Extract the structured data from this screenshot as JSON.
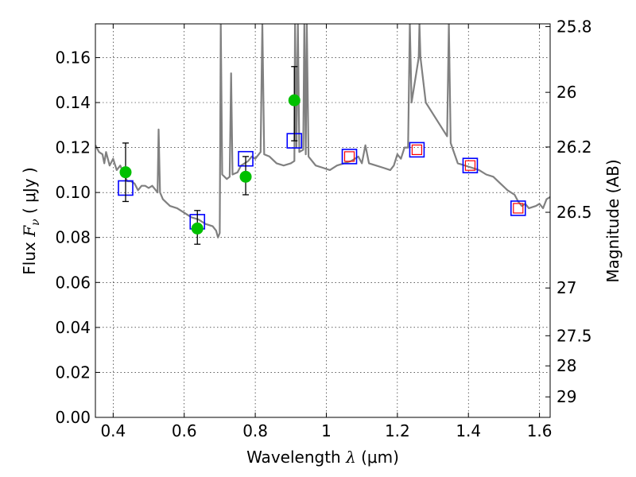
{
  "chart_data": {
    "type": "scatter",
    "xlabel": {
      "prefix": "Wavelength  ",
      "symbol": "λ",
      "unit": " (μm)"
    },
    "ylabel": {
      "prefix": "Flux  ",
      "symbol": "F",
      "subscript": "ν",
      "unit": "  ( μJy )"
    },
    "y2label": "Magnitude (AB)",
    "xlim": [
      0.35,
      1.63
    ],
    "ylim": [
      0.0,
      0.175
    ],
    "x_ticks": [
      0.4,
      0.6,
      0.8,
      1.0,
      1.2,
      1.4,
      1.6
    ],
    "x_tick_labels": [
      "0.4",
      "0.6",
      "0.8",
      "1",
      "1.2",
      "1.4",
      "1.6"
    ],
    "y_ticks": [
      0.0,
      0.02,
      0.04,
      0.06,
      0.08,
      0.1,
      0.12,
      0.14,
      0.16
    ],
    "y_tick_labels": [
      "0.00",
      "0.02",
      "0.04",
      "0.06",
      "0.08",
      "0.10",
      "0.12",
      "0.14",
      "0.16"
    ],
    "y2_ticks": [
      {
        "label": "25.8",
        "mag": 25.8
      },
      {
        "label": "26",
        "mag": 26.0
      },
      {
        "label": "26.2",
        "mag": 26.2
      },
      {
        "label": "26.5",
        "mag": 26.5
      },
      {
        "label": "27",
        "mag": 27.0
      },
      {
        "label": "27.5",
        "mag": 27.5
      },
      {
        "label": "28",
        "mag": 28.0
      },
      {
        "label": "29",
        "mag": 29.0
      }
    ],
    "grid": true,
    "colors": {
      "model": "#808080",
      "observed": "#00c000",
      "model_box": "#0000ff",
      "model_box_inner": "#ff0000",
      "errorbar": "#000000"
    },
    "series": [
      {
        "kind": "line",
        "points": [
          [
            0.35,
            0.121
          ],
          [
            0.36,
            0.118
          ],
          [
            0.37,
            0.117
          ],
          [
            0.375,
            0.113
          ],
          [
            0.38,
            0.118
          ],
          [
            0.39,
            0.112
          ],
          [
            0.4,
            0.115
          ],
          [
            0.41,
            0.11
          ],
          [
            0.42,
            0.112
          ],
          [
            0.43,
            0.108
          ],
          [
            0.44,
            0.105
          ],
          [
            0.45,
            0.105
          ],
          [
            0.46,
            0.104
          ],
          [
            0.47,
            0.101
          ],
          [
            0.48,
            0.103
          ],
          [
            0.49,
            0.103
          ],
          [
            0.5,
            0.102
          ],
          [
            0.51,
            0.103
          ],
          [
            0.52,
            0.101
          ],
          [
            0.525,
            0.1
          ],
          [
            0.528,
            0.128
          ],
          [
            0.532,
            0.1
          ],
          [
            0.54,
            0.097
          ],
          [
            0.56,
            0.094
          ],
          [
            0.58,
            0.093
          ],
          [
            0.6,
            0.091
          ],
          [
            0.62,
            0.089
          ],
          [
            0.64,
            0.088
          ],
          [
            0.66,
            0.086
          ],
          [
            0.68,
            0.085
          ],
          [
            0.69,
            0.083
          ],
          [
            0.695,
            0.08
          ],
          [
            0.7,
            0.082
          ],
          [
            0.703,
            0.175
          ],
          [
            0.707,
            0.108
          ],
          [
            0.72,
            0.106
          ],
          [
            0.728,
            0.107
          ],
          [
            0.732,
            0.153
          ],
          [
            0.736,
            0.108
          ],
          [
            0.75,
            0.109
          ],
          [
            0.76,
            0.112
          ],
          [
            0.77,
            0.113
          ],
          [
            0.78,
            0.114
          ],
          [
            0.79,
            0.116
          ],
          [
            0.8,
            0.115
          ],
          [
            0.815,
            0.118
          ],
          [
            0.82,
            0.175
          ],
          [
            0.825,
            0.117
          ],
          [
            0.84,
            0.116
          ],
          [
            0.86,
            0.113
          ],
          [
            0.88,
            0.112
          ],
          [
            0.9,
            0.113
          ],
          [
            0.91,
            0.114
          ],
          [
            0.912,
            0.175
          ],
          [
            0.916,
            0.12
          ],
          [
            0.92,
            0.175
          ],
          [
            0.924,
            0.118
          ],
          [
            0.935,
            0.119
          ],
          [
            0.938,
            0.175
          ],
          [
            0.942,
            0.117
          ],
          [
            0.945,
            0.175
          ],
          [
            0.95,
            0.116
          ],
          [
            0.97,
            0.112
          ],
          [
            0.99,
            0.111
          ],
          [
            1.01,
            0.11
          ],
          [
            1.03,
            0.112
          ],
          [
            1.05,
            0.113
          ],
          [
            1.07,
            0.114
          ],
          [
            1.09,
            0.116
          ],
          [
            1.1,
            0.113
          ],
          [
            1.11,
            0.121
          ],
          [
            1.12,
            0.113
          ],
          [
            1.14,
            0.112
          ],
          [
            1.16,
            0.111
          ],
          [
            1.18,
            0.11
          ],
          [
            1.19,
            0.112
          ],
          [
            1.2,
            0.117
          ],
          [
            1.21,
            0.115
          ],
          [
            1.22,
            0.12
          ],
          [
            1.23,
            0.12
          ],
          [
            1.235,
            0.175
          ],
          [
            1.24,
            0.14
          ],
          [
            1.26,
            0.16
          ],
          [
            1.262,
            0.175
          ],
          [
            1.265,
            0.16
          ],
          [
            1.28,
            0.14
          ],
          [
            1.3,
            0.135
          ],
          [
            1.32,
            0.13
          ],
          [
            1.34,
            0.125
          ],
          [
            1.345,
            0.175
          ],
          [
            1.35,
            0.122
          ],
          [
            1.37,
            0.113
          ],
          [
            1.39,
            0.112
          ],
          [
            1.41,
            0.111
          ],
          [
            1.43,
            0.11
          ],
          [
            1.45,
            0.108
          ],
          [
            1.47,
            0.107
          ],
          [
            1.49,
            0.104
          ],
          [
            1.51,
            0.101
          ],
          [
            1.53,
            0.099
          ],
          [
            1.54,
            0.096
          ],
          [
            1.55,
            0.094
          ],
          [
            1.56,
            0.095
          ],
          [
            1.57,
            0.093
          ],
          [
            1.59,
            0.094
          ],
          [
            1.6,
            0.095
          ],
          [
            1.61,
            0.093
          ],
          [
            1.62,
            0.097
          ],
          [
            1.63,
            0.098
          ]
        ]
      },
      {
        "kind": "observed_points",
        "points": [
          {
            "x": 0.435,
            "y": 0.109,
            "err_low": 0.096,
            "err_high": 0.122
          },
          {
            "x": 0.637,
            "y": 0.084,
            "err_low": 0.077,
            "err_high": 0.092
          },
          {
            "x": 0.773,
            "y": 0.107,
            "err_low": 0.099,
            "err_high": 0.116
          },
          {
            "x": 0.91,
            "y": 0.141,
            "err_low": 0.123,
            "err_high": 0.156
          }
        ]
      },
      {
        "kind": "model_boxes",
        "points": [
          {
            "x": 0.435,
            "y": 0.102,
            "inner": false
          },
          {
            "x": 0.637,
            "y": 0.087,
            "inner": false
          },
          {
            "x": 0.773,
            "y": 0.115,
            "inner": false
          },
          {
            "x": 0.91,
            "y": 0.123,
            "inner": false
          },
          {
            "x": 1.065,
            "y": 0.116,
            "inner": true
          },
          {
            "x": 1.255,
            "y": 0.119,
            "inner": true
          },
          {
            "x": 1.405,
            "y": 0.112,
            "inner": true
          },
          {
            "x": 1.54,
            "y": 0.093,
            "inner": true
          }
        ]
      }
    ]
  }
}
